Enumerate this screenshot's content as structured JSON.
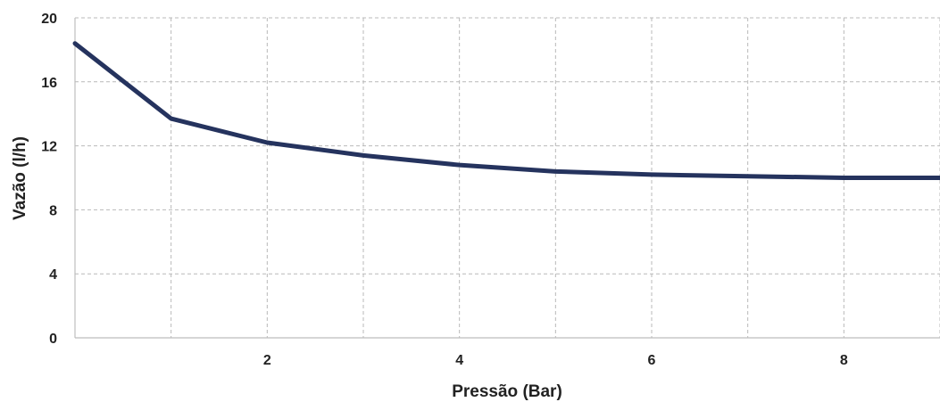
{
  "chart_data": {
    "type": "line",
    "title": "",
    "xlabel": "Pressão (Bar)",
    "ylabel": "Vazão (l/h)",
    "xlim": [
      0,
      9
    ],
    "ylim": [
      0,
      20
    ],
    "x_ticks": [
      2,
      4,
      6,
      8
    ],
    "y_ticks": [
      0,
      4,
      8,
      12,
      16,
      20
    ],
    "x_grid": [
      1,
      2,
      3,
      4,
      5,
      6,
      7,
      8,
      9
    ],
    "grid": true,
    "legend": "none",
    "series": [
      {
        "color": "#25335e",
        "x": [
          0,
          1,
          2,
          3,
          4,
          5,
          6,
          7,
          8,
          9
        ],
        "values": [
          18.4,
          13.7,
          12.2,
          11.4,
          10.8,
          10.4,
          10.2,
          10.1,
          10.0,
          10.0
        ]
      }
    ]
  }
}
